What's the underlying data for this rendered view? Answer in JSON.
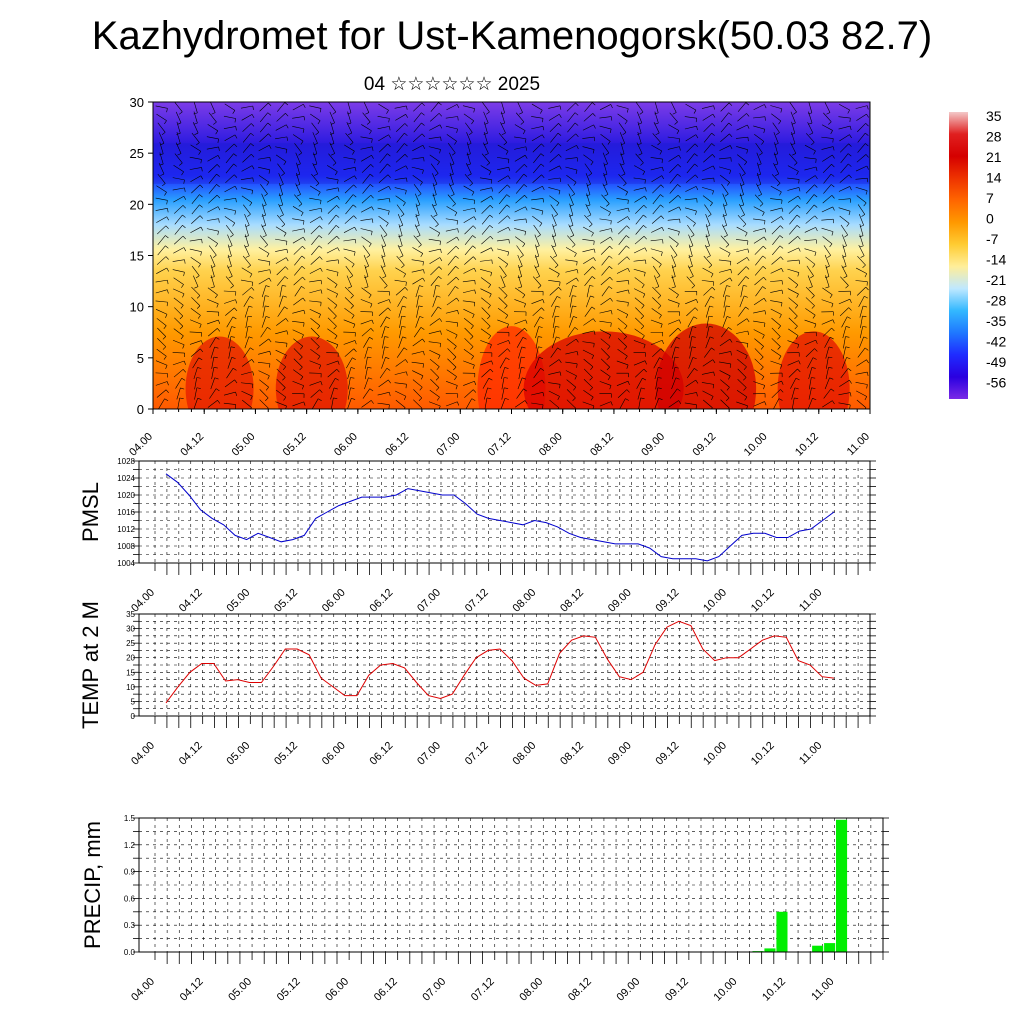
{
  "title": "Kazhydromet for Ust-Kamenogorsk(50.03 82.7)",
  "subtitle": "04 ☆☆☆☆☆☆ 2025",
  "time_labels": [
    "04.00",
    "04.12",
    "05.00",
    "05.12",
    "06.00",
    "06.12",
    "07.00",
    "07.12",
    "08.00",
    "08.12",
    "09.00",
    "09.12",
    "10.00",
    "10.12",
    "11.00"
  ],
  "colors": {
    "pmsl_line": "#0000cc",
    "temp_line": "#dd0000",
    "precip_bar": "#00ee00",
    "grid": "#000000"
  },
  "colorbar": {
    "labels": [
      "35",
      "28",
      "21",
      "14",
      "7",
      "0",
      "-7",
      "-14",
      "-21",
      "-28",
      "-35",
      "-42",
      "-49",
      "-56"
    ],
    "stops": [
      "#f3c8c8",
      "#e02020",
      "#d50000",
      "#ee3300",
      "#ff6600",
      "#ff9900",
      "#ffcc33",
      "#ffee99",
      "#bfe8ff",
      "#33b8ff",
      "#1f78ff",
      "#1f2bff",
      "#2a00e0",
      "#7a2ae6"
    ]
  },
  "chart_data": [
    {
      "type": "heatmap",
      "name": "cross-section",
      "ylim": [
        0,
        30
      ],
      "yticks": [
        "0",
        "5",
        "10",
        "15",
        "20",
        "25",
        "30"
      ],
      "xticks": [
        "04.00",
        "04.12",
        "05.00",
        "05.12",
        "06.00",
        "06.12",
        "07.00",
        "07.12",
        "08.00",
        "08.12",
        "09.00",
        "09.12",
        "10.00",
        "10.12",
        "11.00"
      ],
      "rows": [
        {
          "y": 0,
          "values": [
            12,
            18,
            26,
            20,
            16,
            22,
            12,
            24,
            28,
            30,
            32,
            22,
            30,
            20,
            14
          ]
        },
        {
          "y": 5,
          "values": [
            10,
            14,
            20,
            17,
            13,
            16,
            10,
            18,
            22,
            24,
            26,
            20,
            24,
            16,
            12
          ]
        },
        {
          "y": 10,
          "values": [
            5,
            6,
            8,
            6,
            4,
            5,
            4,
            6,
            8,
            10,
            12,
            10,
            11,
            8,
            6
          ]
        },
        {
          "y": 15,
          "values": [
            -8,
            -10,
            -9,
            -10,
            -11,
            -10,
            -11,
            -12,
            -12,
            -13,
            -13,
            -14,
            -14,
            -13,
            -12
          ]
        },
        {
          "y": 20,
          "values": [
            -28,
            -27,
            -28,
            -30,
            -29,
            -30,
            -31,
            -33,
            -34,
            -33,
            -32,
            -34,
            -33,
            -30,
            -28
          ]
        },
        {
          "y": 25,
          "values": [
            -56,
            -54,
            -56,
            -55,
            -54,
            -55,
            -54,
            -55,
            -54,
            -55,
            -56,
            -55,
            -54,
            -56,
            -55
          ]
        },
        {
          "y": 30,
          "values": [
            -60,
            -59,
            -60,
            -61,
            -60,
            -60,
            -59,
            -60,
            -61,
            -60,
            -59,
            -60,
            -61,
            -60,
            -60
          ]
        }
      ]
    },
    {
      "type": "line",
      "name": "pmsl",
      "ylabel": "PMSL",
      "ylim": [
        1004,
        1028
      ],
      "yticks": [
        "1004",
        "1008",
        "1012",
        "1016",
        "1020",
        "1024",
        "1028"
      ],
      "series": [
        {
          "values": [
            1025,
            1023,
            1020,
            1016.5,
            1014.5,
            1013,
            1010.5,
            1009.5,
            1011,
            1010,
            1009,
            1009.5,
            1010.5,
            1014.5,
            1016,
            1017.5,
            1018.5,
            1019.5,
            1019.5,
            1019.5,
            1020,
            1021.5,
            1021,
            1020.5,
            1020,
            1020,
            1018,
            1015.5,
            1014.5,
            1014,
            1013.5,
            1013,
            1014,
            1013.5,
            1012.5,
            1011,
            1010,
            1009.5,
            1009,
            1008.5,
            1008.5,
            1008.5,
            1007.5,
            1005.5,
            1005,
            1005,
            1005,
            1004.5,
            1005.5,
            1008,
            1010.5,
            1011,
            1011,
            1010,
            1010,
            1011.5,
            1012,
            1014,
            1016
          ]
        }
      ]
    },
    {
      "type": "line",
      "name": "temp2m",
      "ylabel": "TEMP at 2 M",
      "ylim": [
        0,
        35
      ],
      "yticks": [
        "0",
        "5",
        "10",
        "15",
        "20",
        "25",
        "30",
        "35"
      ],
      "series": [
        {
          "values": [
            4.5,
            10,
            15,
            18,
            18,
            12,
            12.5,
            11.5,
            11.5,
            17,
            23,
            23,
            21,
            13,
            10,
            7,
            7,
            14,
            17.5,
            18,
            16.5,
            11.5,
            7,
            6,
            7.5,
            14,
            20,
            22.5,
            23,
            19,
            13,
            10.5,
            11,
            21.5,
            26,
            27.5,
            27,
            19.5,
            13.5,
            12.5,
            15,
            24.5,
            30.5,
            32.5,
            31,
            23,
            19,
            20,
            20,
            23,
            26,
            27.5,
            27,
            19,
            17.5,
            13.5,
            13
          ]
        }
      ]
    },
    {
      "type": "bar",
      "name": "precip",
      "ylabel": "PRECIP, mm",
      "ylim": [
        0,
        1.5
      ],
      "yticks": [
        "0.0",
        "0.3",
        "0.6",
        "0.9",
        "1.2",
        "1.5"
      ],
      "bars": [
        {
          "step": 48,
          "value": 0.01
        },
        {
          "step": 49,
          "value": 0.04
        },
        {
          "step": 50,
          "value": 0.45
        },
        {
          "step": 53,
          "value": 0.07
        },
        {
          "step": 54,
          "value": 0.1
        },
        {
          "step": 55,
          "value": 1.48
        }
      ]
    }
  ]
}
